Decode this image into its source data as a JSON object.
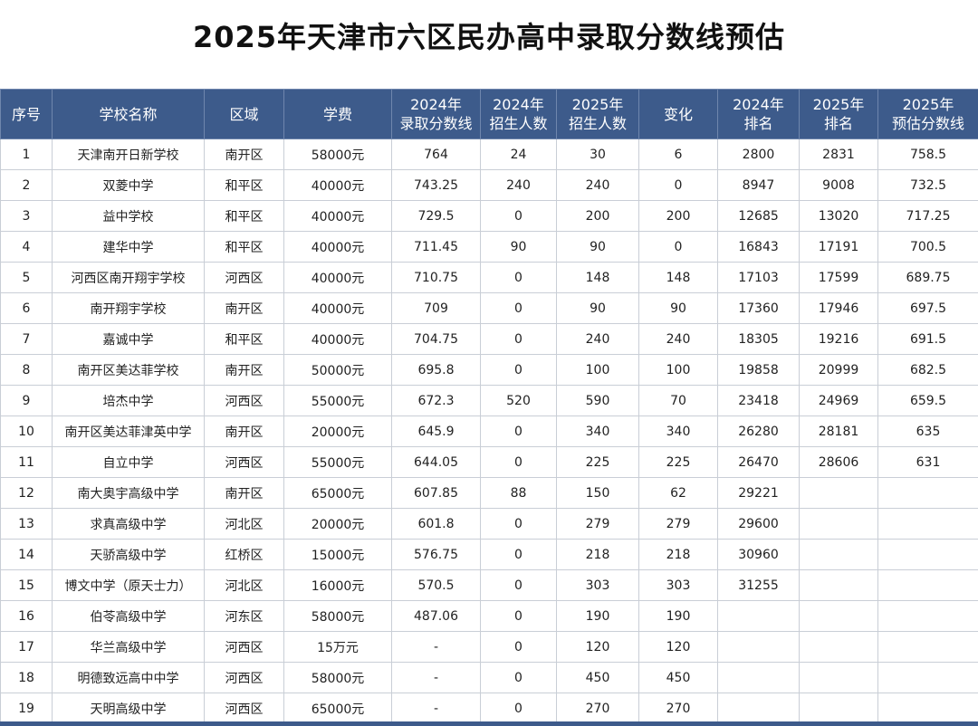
{
  "title": "2025年天津市六区民办高中录取分数线预估",
  "table": {
    "headers": [
      [
        "序号"
      ],
      [
        "学校名称"
      ],
      [
        "区域"
      ],
      [
        "学费"
      ],
      [
        "2024年",
        "录取分数线"
      ],
      [
        "2024年",
        "招生人数"
      ],
      [
        "2025年",
        "招生人数"
      ],
      [
        "变化"
      ],
      [
        "2024年",
        "排名"
      ],
      [
        "2025年",
        "排名"
      ],
      [
        "2025年",
        "预估分数线"
      ]
    ],
    "rows": [
      [
        "1",
        "天津南开日新学校",
        "南开区",
        "58000元",
        "764",
        "24",
        "30",
        "6",
        "2800",
        "2831",
        "758.5"
      ],
      [
        "2",
        "双菱中学",
        "和平区",
        "40000元",
        "743.25",
        "240",
        "240",
        "0",
        "8947",
        "9008",
        "732.5"
      ],
      [
        "3",
        "益中学校",
        "和平区",
        "40000元",
        "729.5",
        "0",
        "200",
        "200",
        "12685",
        "13020",
        "717.25"
      ],
      [
        "4",
        "建华中学",
        "和平区",
        "40000元",
        "711.45",
        "90",
        "90",
        "0",
        "16843",
        "17191",
        "700.5"
      ],
      [
        "5",
        "河西区南开翔宇学校",
        "河西区",
        "40000元",
        "710.75",
        "0",
        "148",
        "148",
        "17103",
        "17599",
        "689.75"
      ],
      [
        "6",
        "南开翔宇学校",
        "南开区",
        "40000元",
        "709",
        "0",
        "90",
        "90",
        "17360",
        "17946",
        "697.5"
      ],
      [
        "7",
        "嘉诚中学",
        "和平区",
        "40000元",
        "704.75",
        "0",
        "240",
        "240",
        "18305",
        "19216",
        "691.5"
      ],
      [
        "8",
        "南开区美达菲学校",
        "南开区",
        "50000元",
        "695.8",
        "0",
        "100",
        "100",
        "19858",
        "20999",
        "682.5"
      ],
      [
        "9",
        "培杰中学",
        "河西区",
        "55000元",
        "672.3",
        "520",
        "590",
        "70",
        "23418",
        "24969",
        "659.5"
      ],
      [
        "10",
        "南开区美达菲津英中学",
        "南开区",
        "20000元",
        "645.9",
        "0",
        "340",
        "340",
        "26280",
        "28181",
        "635"
      ],
      [
        "11",
        "自立中学",
        "河西区",
        "55000元",
        "644.05",
        "0",
        "225",
        "225",
        "26470",
        "28606",
        "631"
      ],
      [
        "12",
        "南大奥宇高级中学",
        "南开区",
        "65000元",
        "607.85",
        "88",
        "150",
        "62",
        "29221",
        null,
        null
      ],
      [
        "13",
        "求真高级中学",
        "河北区",
        "20000元",
        "601.8",
        "0",
        "279",
        "279",
        "29600",
        null,
        null
      ],
      [
        "14",
        "天骄高级中学",
        "红桥区",
        "15000元",
        "576.75",
        "0",
        "218",
        "218",
        "30960",
        null,
        null
      ],
      [
        "15",
        "博文中学（原天士力）",
        "河北区",
        "16000元",
        "570.5",
        "0",
        "303",
        "303",
        "31255",
        null,
        null
      ],
      [
        "16",
        "伯苓高级中学",
        "河东区",
        "58000元",
        "487.06",
        "0",
        "190",
        "190",
        null,
        null,
        null
      ],
      [
        "17",
        "华兰高级中学",
        "河西区",
        "15万元",
        "-",
        "0",
        "120",
        "120",
        null,
        null,
        null
      ],
      [
        "18",
        "明德致远高中中学",
        "河西区",
        "58000元",
        "-",
        "0",
        "450",
        "450",
        null,
        null,
        null
      ],
      [
        "19",
        "天明高级中学",
        "河西区",
        "65000元",
        "-",
        "0",
        "270",
        "270",
        null,
        null,
        null
      ]
    ]
  }
}
